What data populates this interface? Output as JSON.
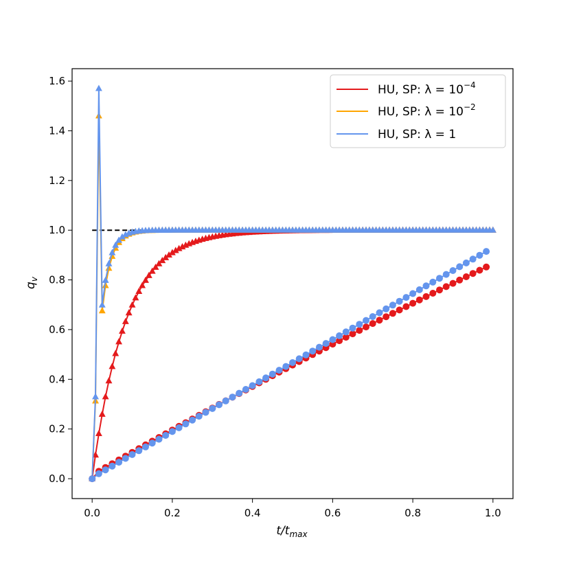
{
  "chart_data": {
    "type": "line",
    "xlabel": "t/t",
    "xlabel_sub": "max",
    "ylabel": "q",
    "ylabel_sub": "v",
    "xlim": [
      -0.05,
      1.05
    ],
    "ylim": [
      -0.08,
      1.65
    ],
    "x_ticks": [
      0.0,
      0.2,
      0.4,
      0.6,
      0.8,
      1.0
    ],
    "x_tick_labels": [
      "0.0",
      "0.2",
      "0.4",
      "0.6",
      "0.8",
      "1.0"
    ],
    "y_ticks": [
      0.0,
      0.2,
      0.4,
      0.6,
      0.8,
      1.0,
      1.2,
      1.4,
      1.6
    ],
    "y_tick_labels": [
      "0.0",
      "0.2",
      "0.4",
      "0.6",
      "0.8",
      "1.0",
      "1.2",
      "1.4",
      "1.6"
    ],
    "grid": false,
    "legend_position": "top-right",
    "reference_line": {
      "y": 1.0,
      "color": "#000000",
      "style": "dashed"
    },
    "legend": [
      {
        "text": "HU, SP: λ = 10",
        "sup": "−4",
        "color": "#e41a1c"
      },
      {
        "text": "HU, SP: λ = 10",
        "sup": "−2",
        "color": "#ffa500"
      },
      {
        "text": "HU, SP: λ = 1",
        "sup": "",
        "color": "#6495ed"
      }
    ],
    "series": [
      {
        "name": "HU, SP: λ = 10⁻⁴",
        "kind": "triangles",
        "color": "#e41a1c",
        "model": "exp_saturation",
        "rate": 12.0
      },
      {
        "name": "HU, SP: λ = 10⁻²",
        "kind": "triangles",
        "color": "#ffa500",
        "model": "overshoot",
        "peak": 1.46,
        "rate": 45.0
      },
      {
        "name": "HU, SP: λ = 1",
        "kind": "triangles",
        "color": "#6495ed",
        "model": "overshoot",
        "peak": 1.57,
        "rate": 48.0
      },
      {
        "name": "HU, SP: λ = 10⁻⁴ (circles)",
        "kind": "circles",
        "color": "#e41a1c",
        "model": "quadratic",
        "x": [
          0.0,
          0.0167,
          1.0
        ],
        "values": [
          0.0,
          0.03,
          0.865
        ]
      },
      {
        "name": "HU, SP: λ = 1 (circles)",
        "kind": "circles",
        "color": "#6495ed",
        "model": "linear",
        "x": [
          0.0,
          0.0167,
          1.0
        ],
        "values": [
          0.0,
          0.02,
          0.93
        ]
      }
    ]
  }
}
